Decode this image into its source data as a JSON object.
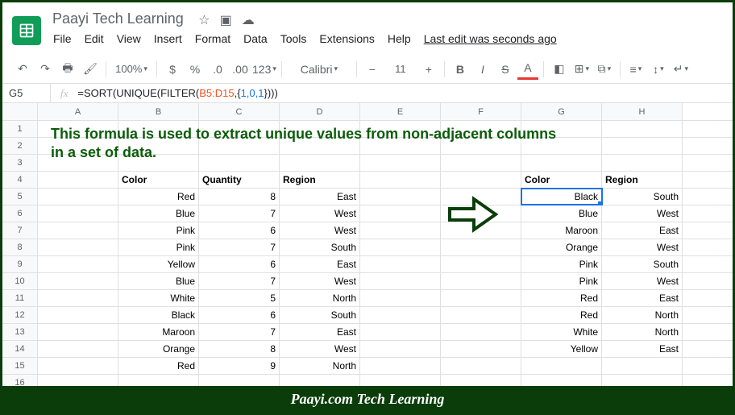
{
  "doc": {
    "title": "Paayi Tech Learning"
  },
  "menu": [
    "File",
    "Edit",
    "View",
    "Insert",
    "Format",
    "Data",
    "Tools",
    "Extensions",
    "Help"
  ],
  "last_edit": "Last edit was seconds ago",
  "toolbar": {
    "zoom": "100%",
    "font": "Calibri",
    "fontsize": "11",
    "textcolor_accent": "#e53935",
    "format_label": "123"
  },
  "formula": {
    "cell_ref": "G5",
    "prefix": "=SORT(UNIQUE(FILTER(",
    "range": "B5:D15",
    "mid": ",{",
    "arr": "1,0,1",
    "suffix": "})))"
  },
  "columns": [
    "A",
    "B",
    "C",
    "D",
    "E",
    "F",
    "G",
    "H"
  ],
  "headers": {
    "B4": "Color",
    "C4": "Quantity",
    "D4": "Region",
    "G4": "Color",
    "H4": "Region"
  },
  "left_table": [
    [
      "Red",
      "8",
      "East"
    ],
    [
      "Blue",
      "7",
      "West"
    ],
    [
      "Pink",
      "6",
      "West"
    ],
    [
      "Pink",
      "7",
      "South"
    ],
    [
      "Yellow",
      "6",
      "East"
    ],
    [
      "Blue",
      "7",
      "West"
    ],
    [
      "White",
      "5",
      "North"
    ],
    [
      "Black",
      "6",
      "South"
    ],
    [
      "Maroon",
      "7",
      "East"
    ],
    [
      "Orange",
      "8",
      "West"
    ],
    [
      "Red",
      "9",
      "North"
    ]
  ],
  "right_table": [
    [
      "Black",
      "South"
    ],
    [
      "Blue",
      "West"
    ],
    [
      "Maroon",
      "East"
    ],
    [
      "Orange",
      "West"
    ],
    [
      "Pink",
      "South"
    ],
    [
      "Pink",
      "West"
    ],
    [
      "Red",
      "East"
    ],
    [
      "Red",
      "North"
    ],
    [
      "White",
      "North"
    ],
    [
      "Yellow",
      "East"
    ]
  ],
  "banner_line1": "This formula is used to extract unique values from non-adjacent columns",
  "banner_line2": "in a set of data.",
  "footer": "Paayi.com Tech Learning",
  "colors": {
    "border": "#0a3d0a",
    "banner": "#0a5c0a",
    "selection": "#1a73e8"
  }
}
